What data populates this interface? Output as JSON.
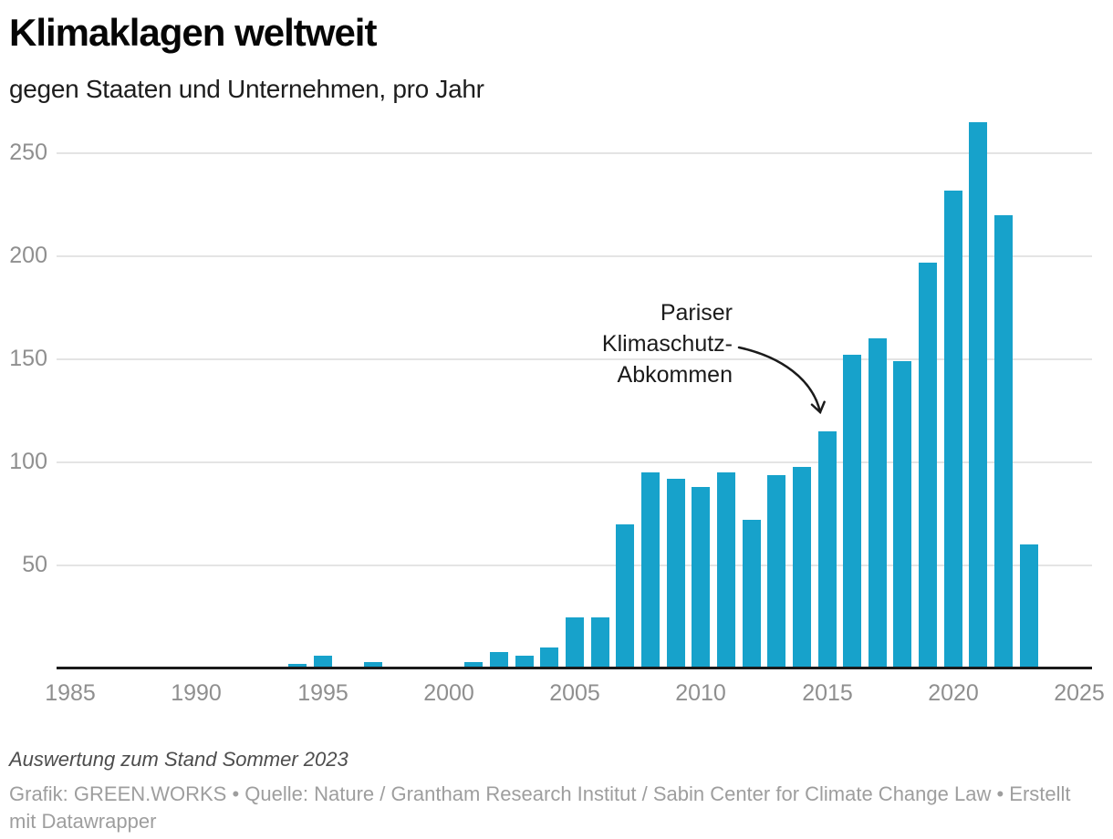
{
  "header": {
    "title": "Klimaklagen weltweit",
    "subtitle": "gegen Staaten und Unternehmen, pro Jahr"
  },
  "annotation": {
    "lines": [
      "Pariser",
      "Klimaschutz-",
      "Abkommen"
    ]
  },
  "footer": {
    "note": "Auswertung zum Stand Sommer 2023",
    "credits": "Grafik: GREEN.WORKS • Quelle: Nature / Grantham Research Institut / Sabin Center for Climate Change Law • Erstellt mit Datawrapper"
  },
  "colors": {
    "bar": "#17a2cb",
    "grid": "#e4e4e4",
    "axis": "#1a1a1a",
    "tick": "#8f8f8f",
    "annotation": "#1b1b1b"
  },
  "chart_data": {
    "type": "bar",
    "title": "Klimaklagen weltweit",
    "subtitle": "gegen Staaten und Unternehmen, pro Jahr",
    "x": [
      1986,
      1989,
      1992,
      1994,
      1995,
      1997,
      1999,
      2000,
      2001,
      2002,
      2003,
      2004,
      2005,
      2006,
      2007,
      2008,
      2009,
      2010,
      2011,
      2012,
      2013,
      2014,
      2015,
      2016,
      2017,
      2018,
      2019,
      2020,
      2021,
      2022,
      2023
    ],
    "values": [
      1,
      1,
      1,
      2,
      6,
      3,
      1,
      1,
      3,
      8,
      6,
      10,
      25,
      25,
      70,
      95,
      92,
      88,
      95,
      72,
      94,
      98,
      115,
      152,
      160,
      149,
      197,
      232,
      265,
      220,
      60
    ],
    "x_ticks": [
      1985,
      1990,
      1995,
      2000,
      2005,
      2010,
      2015,
      2020,
      2025
    ],
    "y_ticks": [
      50,
      100,
      150,
      200,
      250
    ],
    "xlim": [
      1985,
      2025
    ],
    "ylim": [
      0,
      265
    ],
    "grid": "horizontal-only",
    "legend": "none",
    "annotation": {
      "text": "Pariser Klimaschutz-Abkommen",
      "target_year": 2015,
      "target_value": 115
    }
  }
}
